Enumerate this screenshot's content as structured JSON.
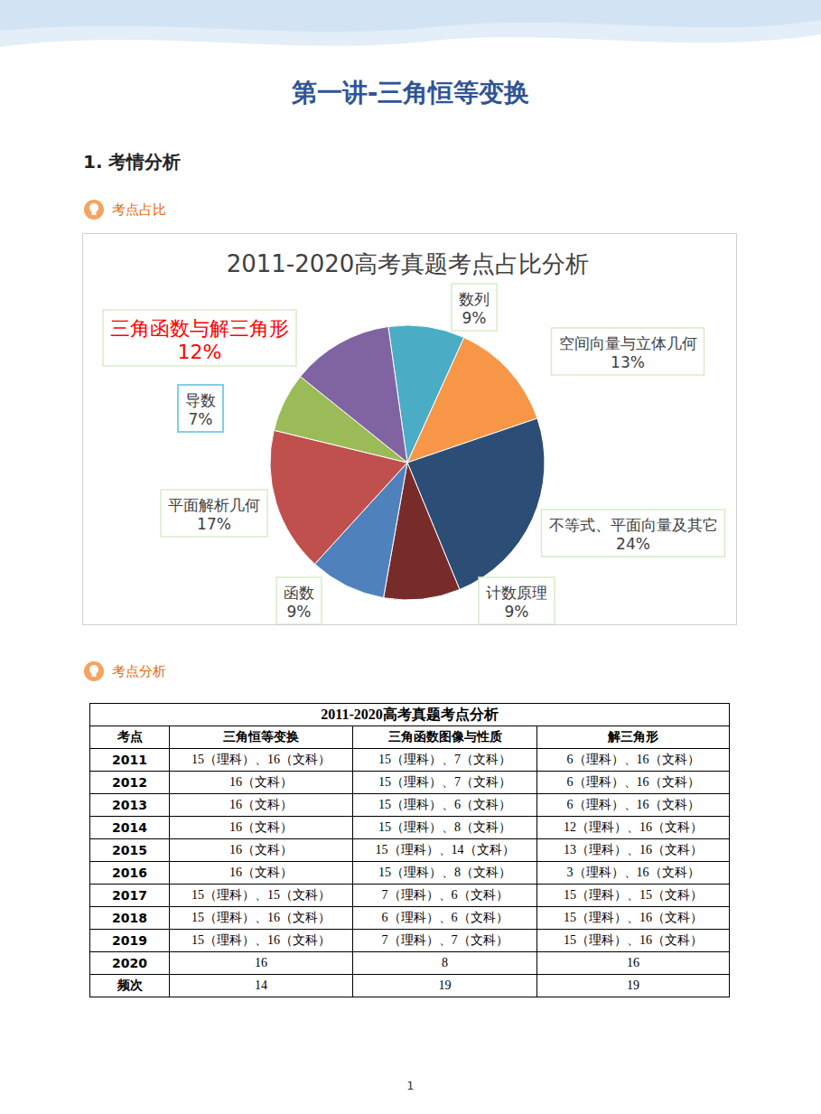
{
  "header": {
    "title": "第一讲-三角恒等变换"
  },
  "section": {
    "heading": "1. 考情分析"
  },
  "subsections": [
    "考点占比",
    "考点分析"
  ],
  "chart_data": {
    "type": "pie",
    "title": "2011-2020高考真题考点占比分析",
    "categories": [
      "数列",
      "空间向量与立体几何",
      "不等式、平面向量及其它",
      "计数原理",
      "函数",
      "平面解析几何",
      "导数",
      "三角函数与解三角形"
    ],
    "values": [
      9,
      13,
      24,
      9,
      9,
      17,
      7,
      12
    ],
    "value_labels": [
      "9%",
      "13%",
      "24%",
      "9%",
      "9%",
      "17%",
      "7%",
      "12%"
    ],
    "colors": [
      "#4bacc6",
      "#f79646",
      "#2c4d75",
      "#772c2a",
      "#4f81bd",
      "#c0504d",
      "#9bbb59",
      "#8064a2"
    ],
    "data_labels": true
  },
  "table": {
    "title": "2011-2020高考真题考点分析",
    "header": [
      "考点",
      "三角恒等变换",
      "三角函数图像与性质",
      "解三角形"
    ],
    "rows": [
      [
        "2011",
        "15（理科）、16（文科）",
        "15（理科）、7（文科）",
        "6（理科）、16（文科）"
      ],
      [
        "2012",
        "16（文科）",
        "15（理科）、7（文科）",
        "6（理科）、16（文科）"
      ],
      [
        "2013",
        "16（文科）",
        "15（理科）、6（文科）",
        "6（理科）、16（文科）"
      ],
      [
        "2014",
        "16（文科）",
        "15（理科）、8（文科）",
        "12（理科）、16（文科）"
      ],
      [
        "2015",
        "16（文科）",
        "15（理科）、14（文科）",
        "13（理科）、16（文科）"
      ],
      [
        "2016",
        "16（文科）",
        "15（理科）、8（文科）",
        "3（理科）、16（文科）"
      ],
      [
        "2017",
        "15（理科）、15（文科）",
        "7（理科）、6（文科）",
        "15（理科）、15（文科）"
      ],
      [
        "2018",
        "15（理科）、16（文科）",
        "6（理科）、6（文科）",
        "15（理科）、16（文科）"
      ],
      [
        "2019",
        "15（理科）、16（文科）",
        "7（理科）、7（文科）",
        "15（理科）、16（文科）"
      ],
      [
        "2020",
        "16",
        "8",
        "16"
      ],
      [
        "频次",
        "14",
        "19",
        "19"
      ]
    ]
  },
  "footer": {
    "page": "1"
  }
}
